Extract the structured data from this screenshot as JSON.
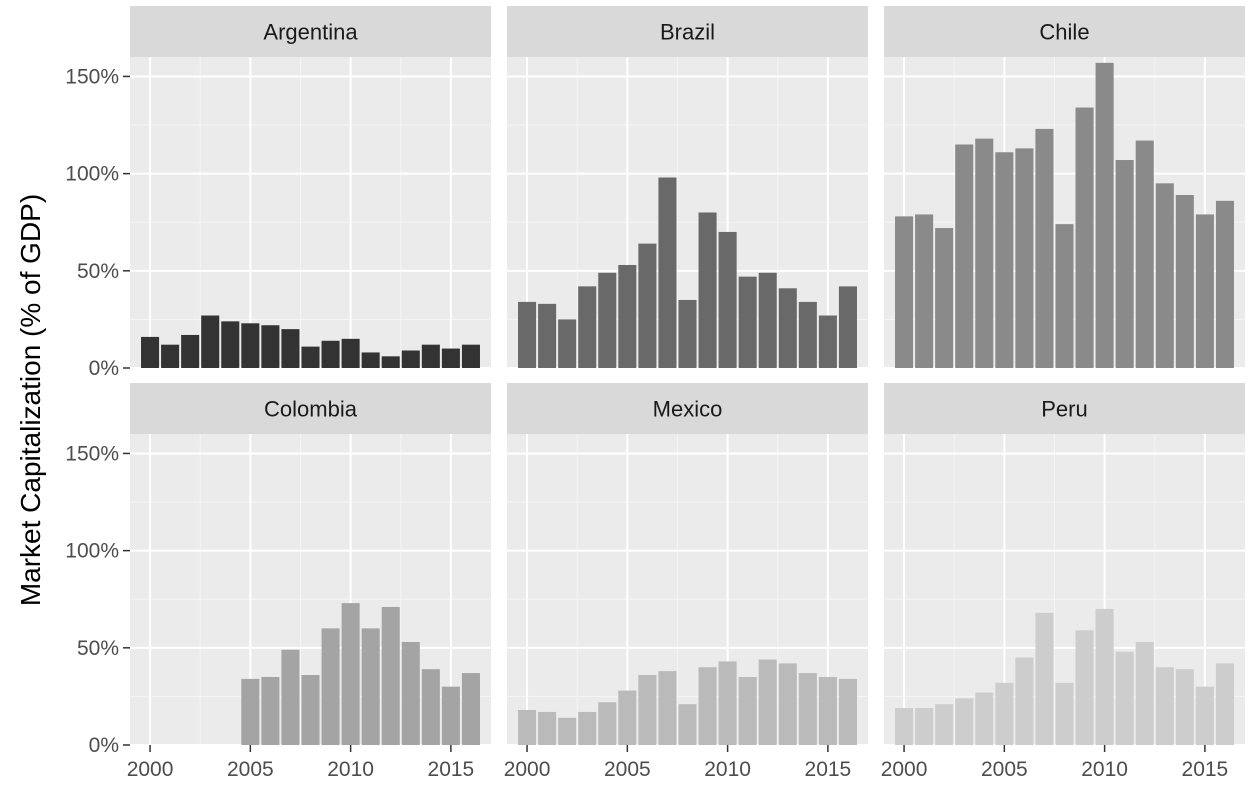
{
  "chart_data": {
    "type": "bar",
    "layout": "facet_wrap",
    "ylabel": "Market Capitalization (% of GDP)",
    "xlabel": "",
    "x_ticks": [
      2000,
      2005,
      2010,
      2015
    ],
    "y_ticks": [
      "0%",
      "50%",
      "100%",
      "150%"
    ],
    "y_tick_values": [
      0,
      50,
      100,
      150
    ],
    "ylim": [
      0,
      160
    ],
    "xlim": [
      1999,
      2017
    ],
    "grid": true,
    "years": [
      2000,
      2001,
      2002,
      2003,
      2004,
      2005,
      2006,
      2007,
      2008,
      2009,
      2010,
      2011,
      2012,
      2013,
      2014,
      2015,
      2016
    ],
    "panels": [
      {
        "name": "Argentina",
        "color": "#333333",
        "values": [
          16,
          12,
          17,
          27,
          24,
          23,
          22,
          20,
          11,
          14,
          15,
          8,
          6,
          9,
          12,
          10,
          12
        ]
      },
      {
        "name": "Brazil",
        "color": "#696969",
        "values": [
          34,
          33,
          25,
          42,
          49,
          53,
          64,
          98,
          35,
          80,
          70,
          47,
          49,
          41,
          34,
          27,
          42
        ]
      },
      {
        "name": "Chile",
        "color": "#8a8a8a",
        "values": [
          78,
          79,
          72,
          115,
          118,
          111,
          113,
          123,
          74,
          134,
          157,
          107,
          117,
          95,
          89,
          79,
          86
        ]
      },
      {
        "name": "Colombia",
        "color": "#a4a4a4",
        "values": [
          null,
          null,
          null,
          null,
          null,
          34,
          35,
          49,
          36,
          60,
          73,
          60,
          71,
          53,
          39,
          30,
          37
        ]
      },
      {
        "name": "Mexico",
        "color": "#bababa",
        "values": [
          18,
          17,
          14,
          17,
          22,
          28,
          36,
          38,
          21,
          40,
          43,
          35,
          44,
          42,
          37,
          35,
          34
        ]
      },
      {
        "name": "Peru",
        "color": "#cdcdcd",
        "values": [
          19,
          19,
          21,
          24,
          27,
          32,
          45,
          68,
          32,
          59,
          70,
          48,
          53,
          40,
          39,
          30,
          42
        ]
      }
    ]
  }
}
